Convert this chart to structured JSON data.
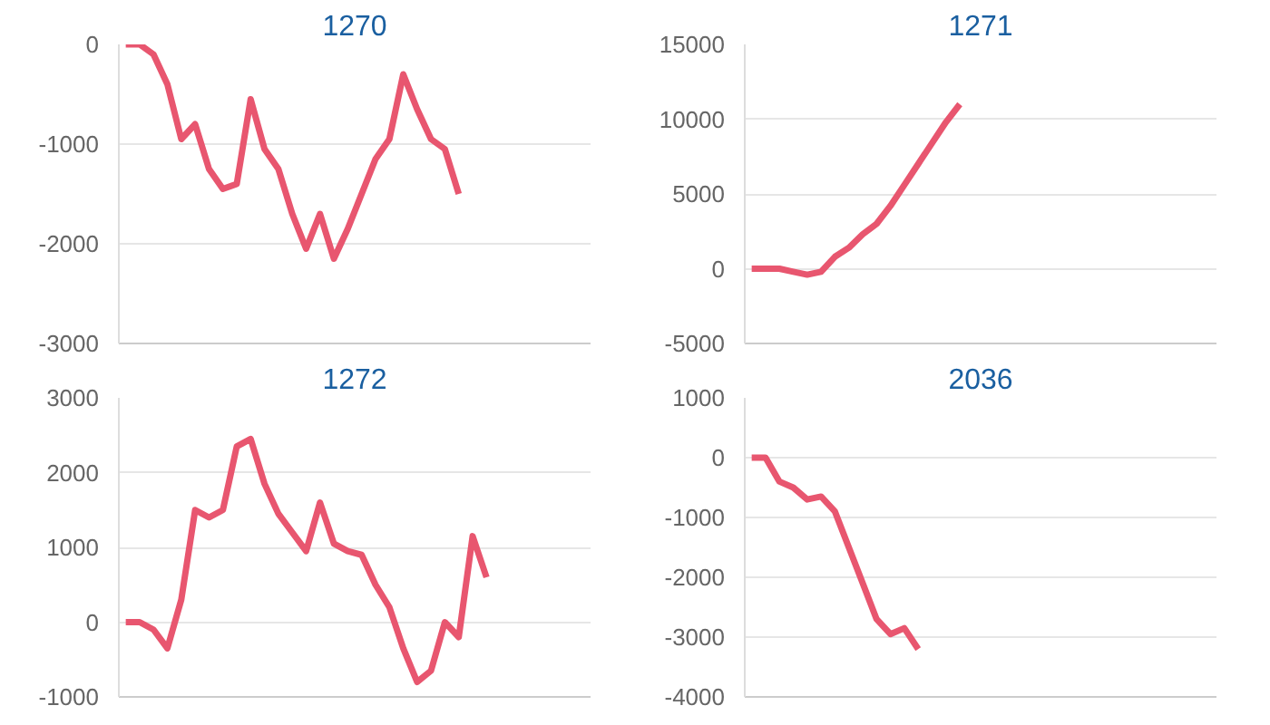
{
  "chart_data": [
    {
      "type": "line",
      "title": "1270",
      "categories": [
        null,
        null,
        null,
        null,
        null,
        null,
        null,
        null,
        null,
        null,
        null,
        null,
        null,
        null,
        null,
        null,
        null,
        null,
        null,
        null,
        null,
        null,
        null,
        null,
        null,
        null,
        null,
        null,
        null,
        null,
        null,
        null,
        null,
        null
      ],
      "series": [
        {
          "color": "#e8566f",
          "values": [
            0,
            0,
            -100,
            -400,
            -950,
            -800,
            -1250,
            -1450,
            -1400,
            -550,
            -1050,
            -1250,
            -1700,
            -2050,
            -1700,
            -2150,
            -1850,
            -1500,
            -1150,
            -950,
            -300,
            -650,
            -950,
            -1050,
            -1500,
            null,
            null,
            null,
            null,
            null,
            null,
            null,
            null,
            null
          ]
        }
      ],
      "ylim": [
        -3000,
        0
      ],
      "yticks": [
        -3000,
        -2000,
        -1000,
        0
      ],
      "grid": "y",
      "marker": "none",
      "line_style": "solid"
    },
    {
      "type": "line",
      "title": "1271",
      "categories": [
        null,
        null,
        null,
        null,
        null,
        null,
        null,
        null,
        null,
        null,
        null,
        null,
        null,
        null,
        null,
        null,
        null,
        null,
        null,
        null,
        null,
        null,
        null,
        null,
        null,
        null,
        null,
        null,
        null,
        null,
        null,
        null,
        null,
        null
      ],
      "series": [
        {
          "color": "#e8566f",
          "values": [
            0,
            0,
            0,
            -200,
            -400,
            -200,
            800,
            1400,
            2300,
            3000,
            4200,
            5600,
            7000,
            8400,
            9800,
            11000,
            null,
            null,
            null,
            null,
            null,
            null,
            null,
            null,
            null,
            null,
            null,
            null,
            null,
            null,
            null,
            null,
            null,
            null
          ]
        }
      ],
      "ylim": [
        -5000,
        15000
      ],
      "yticks": [
        -5000,
        0,
        5000,
        10000,
        15000
      ],
      "grid": "y",
      "marker": "none",
      "line_style": "solid"
    },
    {
      "type": "line",
      "title": "1272",
      "categories": [
        null,
        null,
        null,
        null,
        null,
        null,
        null,
        null,
        null,
        null,
        null,
        null,
        null,
        null,
        null,
        null,
        null,
        null,
        null,
        null,
        null,
        null,
        null,
        null,
        null,
        null,
        null,
        null,
        null,
        null,
        null,
        null,
        null,
        null
      ],
      "series": [
        {
          "color": "#e8566f",
          "values": [
            0,
            0,
            -100,
            -350,
            300,
            1500,
            1400,
            1500,
            2350,
            2450,
            1850,
            1450,
            1200,
            950,
            1600,
            1050,
            950,
            900,
            500,
            200,
            -350,
            -800,
            -650,
            0,
            -200,
            1150,
            600,
            null,
            null,
            null,
            null,
            null,
            null,
            null
          ]
        }
      ],
      "ylim": [
        -1000,
        3000
      ],
      "yticks": [
        -1000,
        0,
        1000,
        2000,
        3000
      ],
      "grid": "y",
      "marker": "none",
      "line_style": "solid"
    },
    {
      "type": "line",
      "title": "2036",
      "categories": [
        null,
        null,
        null,
        null,
        null,
        null,
        null,
        null,
        null,
        null,
        null,
        null,
        null,
        null,
        null,
        null,
        null,
        null,
        null,
        null,
        null,
        null,
        null,
        null,
        null,
        null,
        null,
        null,
        null,
        null,
        null,
        null,
        null,
        null
      ],
      "series": [
        {
          "color": "#e8566f",
          "values": [
            0,
            0,
            -400,
            -500,
            -700,
            -650,
            -900,
            -1500,
            -2100,
            -2700,
            -2950,
            -2850,
            -3200,
            null,
            null,
            null,
            null,
            null,
            null,
            null,
            null,
            null,
            null,
            null,
            null,
            null,
            null,
            null,
            null,
            null,
            null,
            null,
            null,
            null
          ]
        }
      ],
      "ylim": [
        -4000,
        1000
      ],
      "yticks": [
        -4000,
        -3000,
        -2000,
        -1000,
        0,
        1000
      ],
      "grid": "y",
      "marker": "none",
      "line_style": "solid"
    }
  ]
}
